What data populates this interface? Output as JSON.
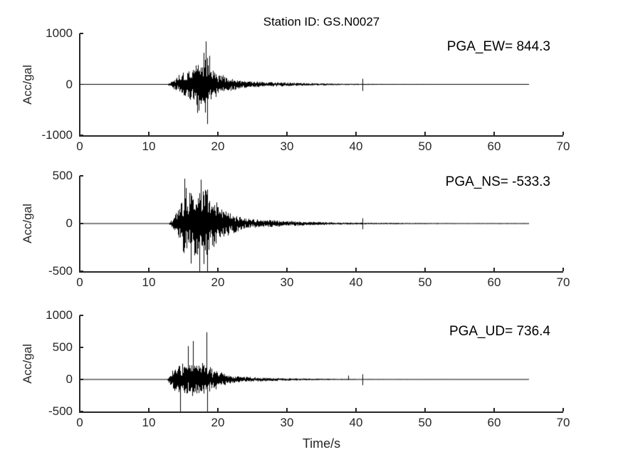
{
  "figure": {
    "title": "Station ID: GS.N0027",
    "xlabel": "Time/s",
    "ylabel": "Acc/gal",
    "background": "#ffffff",
    "axis_color": "#262626",
    "trace_color": "#000000"
  },
  "chart_data": [
    {
      "type": "line",
      "series_name": "EW acceleration waveform",
      "annotation": "PGA_EW= 844.3",
      "pga": 844.3,
      "ylabel": "Acc/gal",
      "xlim": [
        0,
        70
      ],
      "xticks": [
        0,
        10,
        20,
        30,
        40,
        50,
        60,
        70
      ],
      "ylim": [
        -1000,
        1000
      ],
      "yticks": [
        -1000,
        0,
        1000
      ],
      "signal_duration_s": 65,
      "envelope": [
        [
          0,
          4
        ],
        [
          12.6,
          4
        ],
        [
          13.0,
          35
        ],
        [
          13.6,
          90
        ],
        [
          14.2,
          160
        ],
        [
          14.8,
          240
        ],
        [
          15.4,
          270
        ],
        [
          16.0,
          300
        ],
        [
          16.6,
          380
        ],
        [
          17.2,
          480
        ],
        [
          17.8,
          520
        ],
        [
          18.2,
          640
        ],
        [
          18.6,
          420
        ],
        [
          19.2,
          300
        ],
        [
          20.0,
          210
        ],
        [
          21.0,
          160
        ],
        [
          22.0,
          120
        ],
        [
          23.0,
          85
        ],
        [
          24.0,
          65
        ],
        [
          25.5,
          55
        ],
        [
          27.0,
          45
        ],
        [
          29.0,
          38
        ],
        [
          31.0,
          30
        ],
        [
          33.0,
          24
        ],
        [
          35.0,
          20
        ],
        [
          37.0,
          16
        ],
        [
          39.0,
          13
        ],
        [
          41.0,
          11
        ],
        [
          43.0,
          10
        ],
        [
          46.0,
          8
        ],
        [
          50.0,
          7
        ],
        [
          55.0,
          6
        ],
        [
          60.0,
          5
        ],
        [
          65.0,
          5
        ]
      ],
      "peaks": [
        [
          17.0,
          -560
        ],
        [
          17.9,
          620
        ],
        [
          18.2,
          844.3
        ],
        [
          18.5,
          -780
        ],
        [
          18.8,
          560
        ],
        [
          40.9,
          110
        ],
        [
          40.97,
          -130
        ]
      ],
      "seed": 11
    },
    {
      "type": "line",
      "series_name": "NS acceleration waveform",
      "annotation": "PGA_NS= -533.3",
      "pga": -533.3,
      "ylabel": "Acc/gal",
      "xlim": [
        0,
        70
      ],
      "xticks": [
        0,
        10,
        20,
        30,
        40,
        50,
        60,
        70
      ],
      "ylim": [
        -500,
        500
      ],
      "yticks": [
        -500,
        0,
        500
      ],
      "signal_duration_s": 65,
      "envelope": [
        [
          0,
          3
        ],
        [
          12.8,
          3
        ],
        [
          13.2,
          30
        ],
        [
          13.8,
          80
        ],
        [
          14.4,
          180
        ],
        [
          15.0,
          300
        ],
        [
          15.4,
          340
        ],
        [
          16.0,
          280
        ],
        [
          16.6,
          320
        ],
        [
          17.2,
          380
        ],
        [
          17.7,
          420
        ],
        [
          18.2,
          380
        ],
        [
          18.7,
          340
        ],
        [
          19.2,
          260
        ],
        [
          20.0,
          200
        ],
        [
          21.0,
          150
        ],
        [
          22.0,
          105
        ],
        [
          23.0,
          70
        ],
        [
          24.0,
          52
        ],
        [
          25.5,
          42
        ],
        [
          27.0,
          36
        ],
        [
          29.0,
          30
        ],
        [
          31.0,
          24
        ],
        [
          33.0,
          19
        ],
        [
          35.0,
          15
        ],
        [
          37.0,
          12
        ],
        [
          39.0,
          10
        ],
        [
          41.0,
          9
        ],
        [
          43.0,
          8
        ],
        [
          46.0,
          7
        ],
        [
          50.0,
          6
        ],
        [
          55.0,
          5
        ],
        [
          60.0,
          5
        ],
        [
          65.0,
          5
        ]
      ],
      "peaks": [
        [
          15.2,
          470
        ],
        [
          16.1,
          -420
        ],
        [
          17.3,
          -533.3
        ],
        [
          17.55,
          460
        ],
        [
          18.5,
          -533.3
        ],
        [
          40.9,
          55
        ],
        [
          40.97,
          -60
        ]
      ],
      "seed": 23
    },
    {
      "type": "line",
      "series_name": "UD acceleration waveform",
      "annotation": "PGA_UD= 736.4",
      "pga": 736.4,
      "ylabel": "Acc/gal",
      "xlim": [
        0,
        70
      ],
      "xticks": [
        0,
        10,
        20,
        30,
        40,
        50,
        60,
        70
      ],
      "ylim": [
        -500,
        1000
      ],
      "yticks": [
        -500,
        0,
        500,
        1000
      ],
      "signal_duration_s": 65,
      "envelope": [
        [
          0,
          3
        ],
        [
          12.6,
          3
        ],
        [
          13.0,
          70
        ],
        [
          13.5,
          140
        ],
        [
          14.0,
          200
        ],
        [
          14.5,
          240
        ],
        [
          15.0,
          230
        ],
        [
          15.5,
          260
        ],
        [
          16.0,
          240
        ],
        [
          16.5,
          270
        ],
        [
          17.0,
          240
        ],
        [
          17.5,
          230
        ],
        [
          18.0,
          250
        ],
        [
          18.5,
          230
        ],
        [
          19.0,
          180
        ],
        [
          19.6,
          140
        ],
        [
          20.2,
          115
        ],
        [
          21.0,
          90
        ],
        [
          22.0,
          62
        ],
        [
          23.0,
          46
        ],
        [
          24.0,
          38
        ],
        [
          25.5,
          31
        ],
        [
          27.0,
          26
        ],
        [
          29.0,
          21
        ],
        [
          31.0,
          17
        ],
        [
          33.0,
          14
        ],
        [
          35.0,
          12
        ],
        [
          37.0,
          10
        ],
        [
          39.0,
          9
        ],
        [
          41.0,
          8
        ],
        [
          43.0,
          7
        ],
        [
          46.0,
          6
        ],
        [
          50.0,
          6
        ],
        [
          55.0,
          5
        ],
        [
          60.0,
          5
        ],
        [
          65.0,
          5
        ]
      ],
      "peaks": [
        [
          14.5,
          -500
        ],
        [
          15.7,
          520
        ],
        [
          16.4,
          600
        ],
        [
          18.35,
          736.4
        ],
        [
          18.5,
          -500
        ],
        [
          38.9,
          60
        ],
        [
          40.9,
          80
        ],
        [
          40.97,
          -90
        ]
      ],
      "seed": 37
    }
  ]
}
